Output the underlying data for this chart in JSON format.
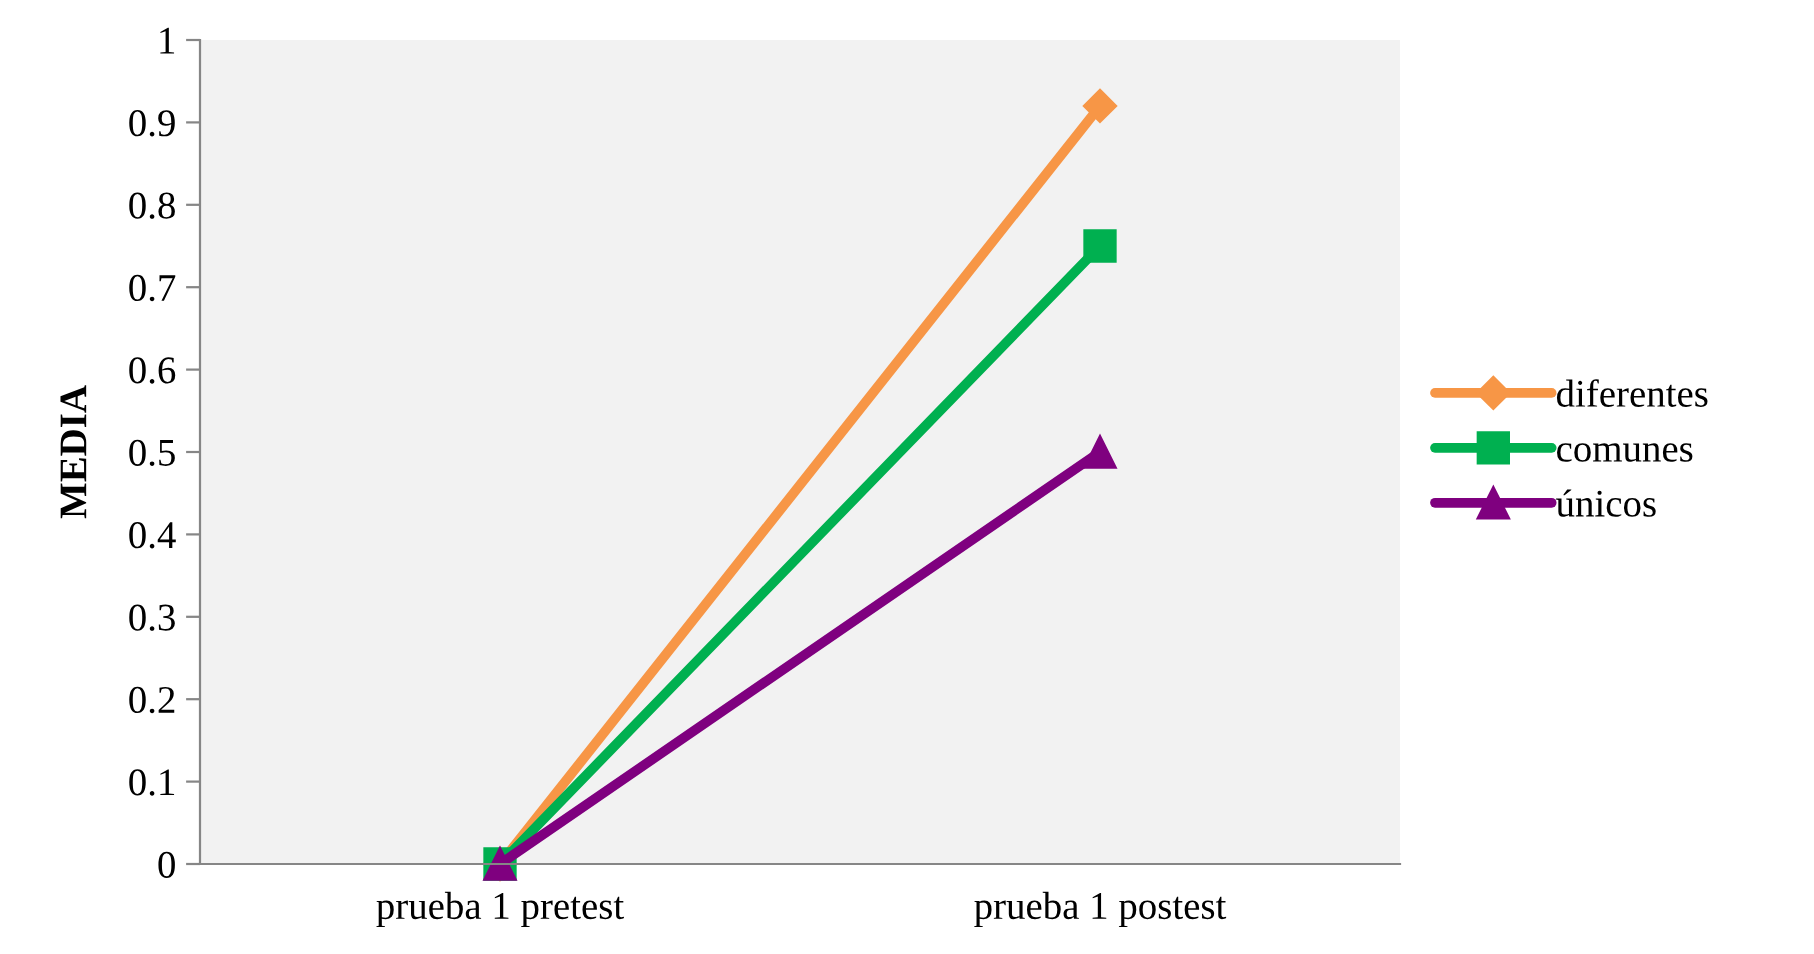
{
  "chart_data": {
    "type": "line",
    "ylabel": "MEDIA",
    "categories": [
      "prueba 1 pretest",
      "prueba 1 postest"
    ],
    "series": [
      {
        "name": "diferentes",
        "color": "#f79646",
        "marker": "diamond",
        "values": [
          0,
          0.92
        ]
      },
      {
        "name": "comunes",
        "color": "#00b050",
        "marker": "square",
        "values": [
          0,
          0.75
        ]
      },
      {
        "name": "únicos",
        "color": "#7f007f",
        "marker": "triangle",
        "values": [
          0,
          0.5
        ]
      }
    ],
    "ylim": [
      0,
      1
    ],
    "yticks": [
      0,
      0.1,
      0.2,
      0.3,
      0.4,
      0.5,
      0.6,
      0.7,
      0.8,
      0.9,
      1
    ],
    "grid": false,
    "legend": "right",
    "line_style": "solid"
  }
}
